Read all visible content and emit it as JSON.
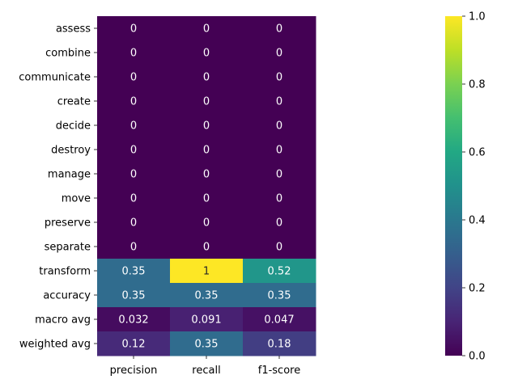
{
  "chart_data": {
    "type": "heatmap",
    "title": "",
    "xlabel": "",
    "ylabel": "",
    "x": [
      "precision",
      "recall",
      "f1-score"
    ],
    "y": [
      "assess",
      "combine",
      "communicate",
      "create",
      "decide",
      "destroy",
      "manage",
      "move",
      "preserve",
      "separate",
      "transform",
      "accuracy",
      "macro avg",
      "weighted avg"
    ],
    "values": [
      [
        0,
        0,
        0
      ],
      [
        0,
        0,
        0
      ],
      [
        0,
        0,
        0
      ],
      [
        0,
        0,
        0
      ],
      [
        0,
        0,
        0
      ],
      [
        0,
        0,
        0
      ],
      [
        0,
        0,
        0
      ],
      [
        0,
        0,
        0
      ],
      [
        0,
        0,
        0
      ],
      [
        0,
        0,
        0
      ],
      [
        0.35,
        1,
        0.52
      ],
      [
        0.35,
        0.35,
        0.35
      ],
      [
        0.032,
        0.091,
        0.047
      ],
      [
        0.12,
        0.35,
        0.18
      ]
    ],
    "cell_labels": [
      [
        "0",
        "0",
        "0"
      ],
      [
        "0",
        "0",
        "0"
      ],
      [
        "0",
        "0",
        "0"
      ],
      [
        "0",
        "0",
        "0"
      ],
      [
        "0",
        "0",
        "0"
      ],
      [
        "0",
        "0",
        "0"
      ],
      [
        "0",
        "0",
        "0"
      ],
      [
        "0",
        "0",
        "0"
      ],
      [
        "0",
        "0",
        "0"
      ],
      [
        "0",
        "0",
        "0"
      ],
      [
        "0.35",
        "1",
        "0.52"
      ],
      [
        "0.35",
        "0.35",
        "0.35"
      ],
      [
        "0.032",
        "0.091",
        "0.047"
      ],
      [
        "0.12",
        "0.35",
        "0.18"
      ]
    ],
    "colormap": "viridis",
    "vmin": 0,
    "vmax": 1,
    "colorbar_ticks": [
      "0.0",
      "0.2",
      "0.4",
      "0.6",
      "0.8",
      "1.0"
    ],
    "colorbar_values": [
      0,
      0.2,
      0.4,
      0.6,
      0.8,
      1.0
    ],
    "grid": false,
    "legend": "colorbar-right"
  }
}
